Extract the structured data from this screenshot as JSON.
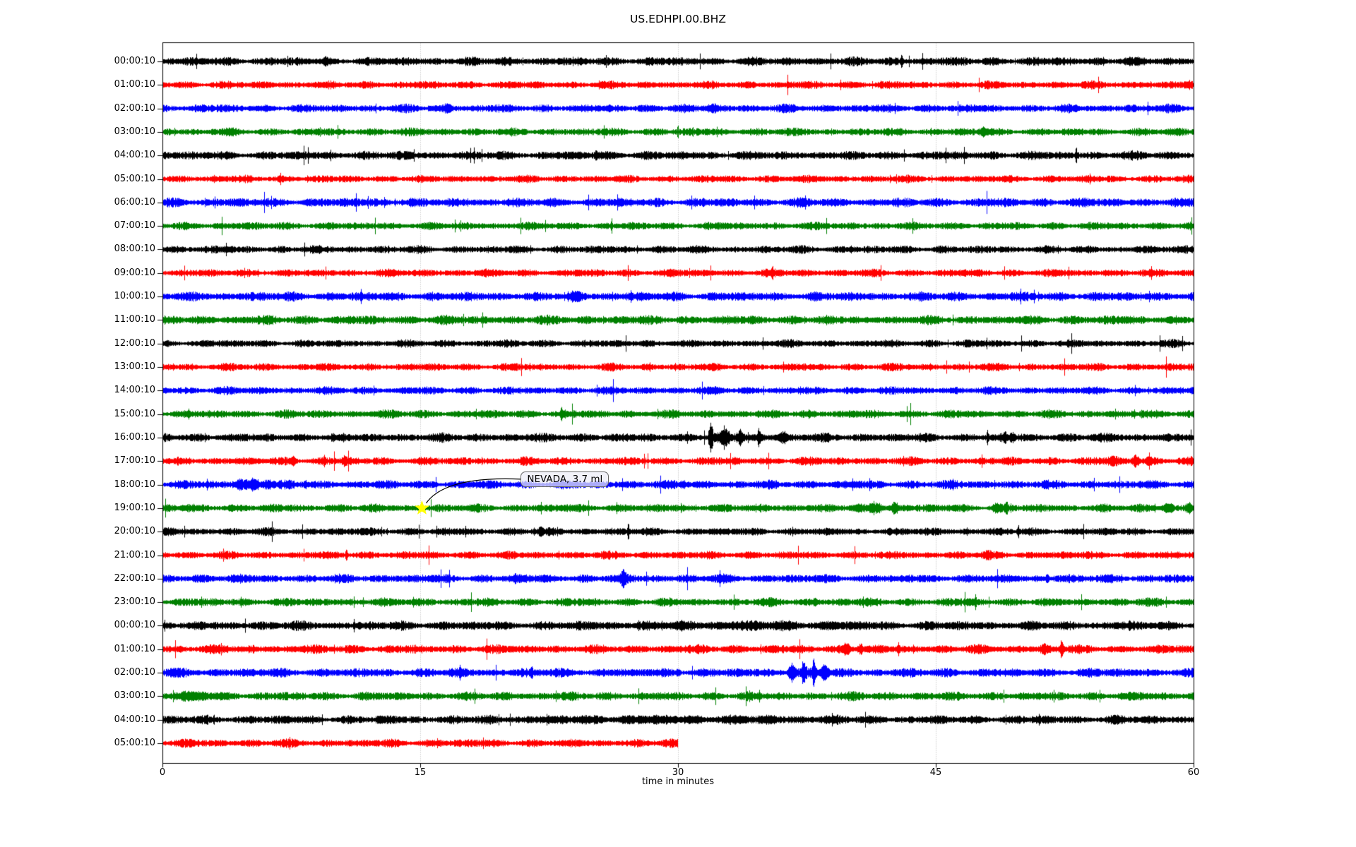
{
  "chart_data": {
    "type": "line",
    "variant": "seismogram-dayplot",
    "title": "US.EDHPI.00.BHZ",
    "xlabel": "time in minutes",
    "xlim": [
      0,
      60
    ],
    "x_ticks": [
      0,
      15,
      30,
      45,
      60
    ],
    "x_gridlines": [
      15,
      30,
      45
    ],
    "grid_on": true,
    "grid_color": "#b0b0b0",
    "frame_color": "#000000",
    "palette": {
      "black": "#000000",
      "red": "#ff0000",
      "blue": "#0000ff",
      "green": "#008000"
    },
    "annotation": {
      "text": "NEVADA, 3.7 ml",
      "trace_index": 19,
      "trace_label": "19:00:10",
      "t_minutes": 15.1,
      "star_color": "#ffff00",
      "arrow_color": "#000000"
    },
    "traces": [
      {
        "label": "00:00:10",
        "color": "black",
        "duration_min": 60,
        "amp": 4.0,
        "events": [
          [
            9.5,
            5,
            0.05
          ],
          [
            43.0,
            7,
            0.06
          ]
        ]
      },
      {
        "label": "01:00:10",
        "color": "red",
        "duration_min": 60,
        "amp": 3.6,
        "events": [
          [
            4.6,
            3,
            0.08
          ]
        ]
      },
      {
        "label": "02:00:10",
        "color": "blue",
        "duration_min": 60,
        "amp": 3.8,
        "events": [
          [
            16.6,
            4,
            0.2
          ],
          [
            32.0,
            3.5,
            0.3
          ]
        ]
      },
      {
        "label": "03:00:10",
        "color": "green",
        "duration_min": 60,
        "amp": 3.6,
        "events": [
          [
            47.8,
            5,
            0.25
          ]
        ]
      },
      {
        "label": "04:00:10",
        "color": "black",
        "duration_min": 60,
        "amp": 4.0,
        "events": [
          [
            25.2,
            4,
            0.08
          ]
        ]
      },
      {
        "label": "05:00:10",
        "color": "red",
        "duration_min": 60,
        "amp": 3.4,
        "events": []
      },
      {
        "label": "06:00:10",
        "color": "blue",
        "duration_min": 60,
        "amp": 4.2,
        "events": []
      },
      {
        "label": "07:00:10",
        "color": "green",
        "duration_min": 60,
        "amp": 3.6,
        "events": []
      },
      {
        "label": "08:00:10",
        "color": "black",
        "duration_min": 60,
        "amp": 3.6,
        "events": []
      },
      {
        "label": "09:00:10",
        "color": "red",
        "duration_min": 60,
        "amp": 3.6,
        "events": [
          [
            35.5,
            6,
            0.05
          ]
        ]
      },
      {
        "label": "10:00:10",
        "color": "blue",
        "duration_min": 60,
        "amp": 4.3,
        "events": [
          [
            24.0,
            3,
            0.3
          ]
        ]
      },
      {
        "label": "11:00:10",
        "color": "green",
        "duration_min": 60,
        "amp": 4.2,
        "events": []
      },
      {
        "label": "12:00:10",
        "color": "black",
        "duration_min": 60,
        "amp": 3.5,
        "events": []
      },
      {
        "label": "13:00:10",
        "color": "red",
        "duration_min": 60,
        "amp": 3.5,
        "events": []
      },
      {
        "label": "14:00:10",
        "color": "blue",
        "duration_min": 60,
        "amp": 3.6,
        "events": []
      },
      {
        "label": "15:00:10",
        "color": "green",
        "duration_min": 60,
        "amp": 3.8,
        "events": [
          [
            23.2,
            7,
            0.05
          ]
        ]
      },
      {
        "label": "16:00:10",
        "color": "black",
        "duration_min": 60,
        "amp": 4.0,
        "events": [
          [
            31.9,
            24,
            0.1
          ],
          [
            32.7,
            11,
            0.25
          ],
          [
            33.6,
            9,
            0.2
          ],
          [
            34.7,
            10,
            0.1
          ],
          [
            36.1,
            5,
            0.3
          ],
          [
            48.0,
            10,
            0.05
          ],
          [
            49.0,
            8,
            0.07
          ],
          [
            49.4,
            5,
            0.12
          ]
        ]
      },
      {
        "label": "17:00:10",
        "color": "red",
        "duration_min": 60,
        "amp": 3.8,
        "events": [
          [
            7.6,
            5,
            0.15
          ],
          [
            9.4,
            7,
            0.05
          ],
          [
            10.6,
            6,
            0.1
          ],
          [
            55.3,
            5,
            0.25
          ],
          [
            56.6,
            7,
            0.18
          ],
          [
            57.4,
            4,
            0.2
          ]
        ]
      },
      {
        "label": "18:00:10",
        "color": "blue",
        "duration_min": 60,
        "amp": 4.0,
        "events": [
          [
            4.5,
            5,
            0.3
          ],
          [
            5.3,
            7,
            0.35
          ],
          [
            6.1,
            5,
            0.25
          ],
          [
            8.3,
            4,
            0.1
          ],
          [
            30.3,
            3,
            0.2
          ]
        ]
      },
      {
        "label": "19:00:10",
        "color": "green",
        "duration_min": 60,
        "amp": 3.8,
        "events": [
          [
            41.5,
            6,
            0.4
          ],
          [
            42.6,
            7,
            0.15
          ],
          [
            48.5,
            5,
            0.2
          ],
          [
            49.1,
            10,
            0.07
          ],
          [
            58.5,
            6,
            0.25
          ],
          [
            59.7,
            5,
            0.2
          ]
        ]
      },
      {
        "label": "20:00:10",
        "color": "black",
        "duration_min": 60,
        "amp": 3.6,
        "events": [
          [
            22.0,
            4,
            0.1
          ],
          [
            27.1,
            12,
            0.05
          ],
          [
            49.8,
            8,
            0.05
          ]
        ]
      },
      {
        "label": "21:00:10",
        "color": "red",
        "duration_min": 60,
        "amp": 3.6,
        "events": [
          [
            10.7,
            8,
            0.05
          ],
          [
            48.0,
            4,
            0.15
          ]
        ]
      },
      {
        "label": "22:00:10",
        "color": "blue",
        "duration_min": 60,
        "amp": 4.0,
        "events": [
          [
            20.5,
            4,
            0.1
          ],
          [
            26.8,
            10,
            0.15
          ],
          [
            51.5,
            7,
            0.07
          ]
        ]
      },
      {
        "label": "23:00:10",
        "color": "green",
        "duration_min": 60,
        "amp": 3.8,
        "events": [
          [
            38.0,
            4,
            0.1
          ],
          [
            47.3,
            10,
            0.05
          ]
        ]
      },
      {
        "label": "00:00:10",
        "color": "black",
        "duration_min": 60,
        "amp": 4.2,
        "events": [
          [
            34.0,
            1.5,
            6.0
          ]
        ]
      },
      {
        "label": "01:00:10",
        "color": "red",
        "duration_min": 60,
        "amp": 4.0,
        "events": [
          [
            39.8,
            6,
            0.2
          ],
          [
            40.6,
            7,
            0.15
          ],
          [
            42.8,
            4,
            0.1
          ],
          [
            51.3,
            5,
            0.2
          ],
          [
            52.3,
            10,
            0.08
          ]
        ]
      },
      {
        "label": "02:00:10",
        "color": "blue",
        "duration_min": 60,
        "amp": 4.2,
        "events": [
          [
            17.3,
            7,
            0.05
          ],
          [
            21.5,
            8,
            0.05
          ],
          [
            30.0,
            4,
            0.1
          ],
          [
            36.6,
            11,
            0.2
          ],
          [
            37.3,
            15,
            0.12
          ],
          [
            37.9,
            20,
            0.1
          ],
          [
            38.5,
            9,
            0.2
          ]
        ]
      },
      {
        "label": "03:00:10",
        "color": "green",
        "duration_min": 60,
        "amp": 4.0,
        "events": [
          [
            2.0,
            3,
            1.2
          ]
        ]
      },
      {
        "label": "04:00:10",
        "color": "black",
        "duration_min": 60,
        "amp": 4.0,
        "events": [
          [
            30.0,
            1.5,
            8.0
          ]
        ]
      },
      {
        "label": "05:00:10",
        "color": "red",
        "duration_min": 30,
        "amp": 3.8,
        "events": []
      }
    ]
  }
}
